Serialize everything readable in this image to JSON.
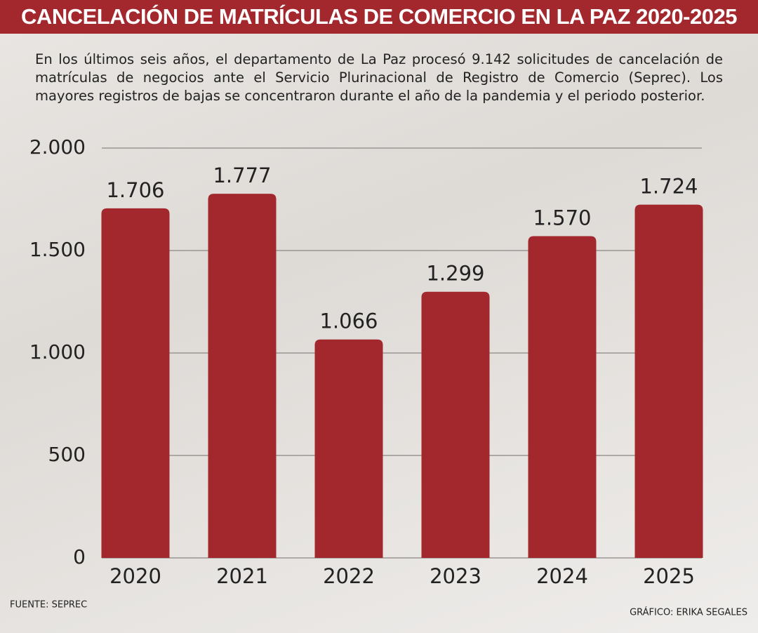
{
  "chart_data": {
    "type": "bar",
    "title": "CANCELACIÓN DE MATRÍCULAS DE COMERCIO EN LA PAZ 2020-2025",
    "subtitle": "En los últimos seis años, el departamento de La Paz procesó 9.142 solicitudes de cancelación de matrículas de negocios ante el Servicio Plurinacional de Registro de Comercio (Seprec). Los mayores registros de bajas se concentraron durante el año de la pandemia y el periodo posterior.",
    "categories": [
      "2020",
      "2021",
      "2022",
      "2023",
      "2024",
      "2025"
    ],
    "values": [
      1706,
      1777,
      1066,
      1299,
      1570,
      1724
    ],
    "value_labels": [
      "1.706",
      "1.777",
      "1.066",
      "1.299",
      "1.570",
      "1.724"
    ],
    "color": "#a3282e",
    "ylim": [
      0,
      2000
    ],
    "yticks": [
      0,
      500,
      {
        "value": 1000,
        "label": "1.000"
      },
      {
        "value": 1500,
        "label": "1.500"
      },
      {
        "value": 2000,
        "label": "2.000"
      }
    ],
    "grid": true,
    "source": "FUENTE: SEPREC",
    "credit": "GRÁFICO: ERIKA SEGALES"
  }
}
